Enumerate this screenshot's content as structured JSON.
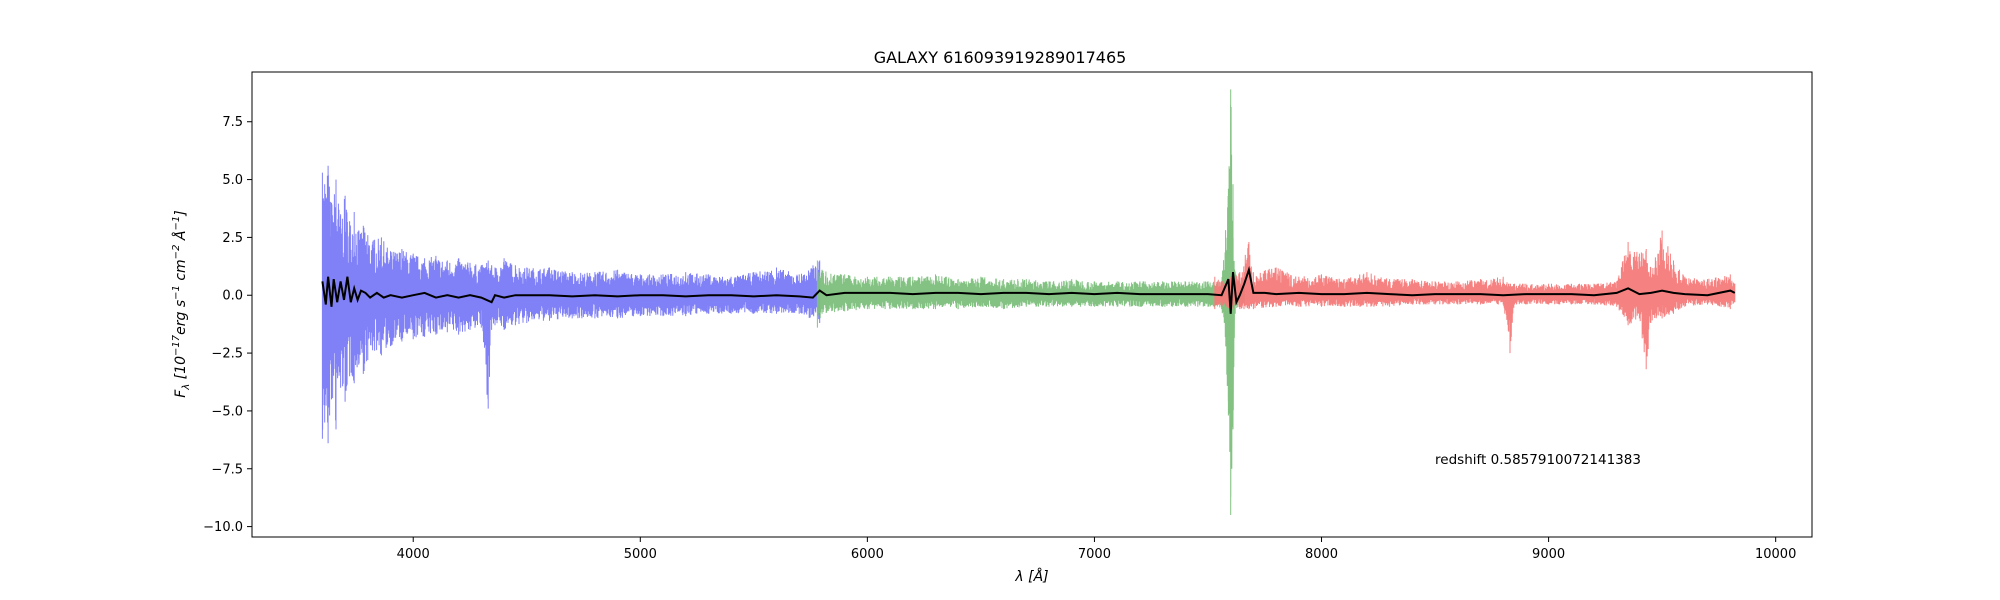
{
  "chart_data": {
    "type": "line",
    "title": "GALAXY 616093919289017465",
    "xlabel": "λ [Å]",
    "ylabel_parts": {
      "symbol": "F",
      "subscript": "λ",
      "open": " [10",
      "exp1": "−17",
      "unit1": "erg s",
      "exp2": "−1",
      "unit2": " cm",
      "exp3": "−2",
      "unit3": " Å",
      "exp4": "−1",
      "close": "]"
    },
    "xlim": [
      3290,
      10160
    ],
    "ylim": [
      -10.45,
      9.65
    ],
    "xticks": [
      4000,
      5000,
      6000,
      7000,
      8000,
      9000,
      10000
    ],
    "xtick_labels": [
      "4000",
      "5000",
      "6000",
      "7000",
      "8000",
      "9000",
      "10000"
    ],
    "yticks": [
      7.5,
      5.0,
      2.5,
      0.0,
      -2.5,
      -5.0,
      -7.5,
      -10.0
    ],
    "ytick_labels": [
      "7.5",
      "5.0",
      "2.5",
      "0.0",
      "−2.5",
      "−5.0",
      "−7.5",
      "−10.0"
    ],
    "annotation": {
      "text": "redshift 0.5857910072141383",
      "x": 8500,
      "y": -7.3
    },
    "series": [
      {
        "color": "#7a7af7",
        "x": [
          3600,
          3610,
          3625,
          3640,
          3660,
          3680,
          3700,
          3720,
          3740,
          3760,
          3780,
          3800,
          3830,
          3860,
          3900,
          3950,
          4000,
          4050,
          4100,
          4150,
          4200,
          4250,
          4300,
          4330,
          4345,
          4360,
          4400,
          4450,
          4500,
          4600,
          4700,
          4800,
          4900,
          5000,
          5100,
          5200,
          5300,
          5400,
          5500,
          5600,
          5700,
          5790
        ],
        "upper": [
          5.3,
          4.8,
          5.6,
          4.0,
          5.0,
          3.5,
          4.3,
          3.2,
          3.6,
          2.8,
          3.0,
          2.6,
          2.4,
          2.5,
          1.9,
          2.0,
          1.8,
          1.6,
          1.7,
          1.5,
          1.6,
          1.4,
          1.3,
          1.5,
          1.3,
          1.2,
          1.6,
          1.3,
          1.2,
          1.2,
          1.0,
          1.0,
          1.1,
          0.9,
          0.9,
          1.0,
          0.9,
          0.8,
          1.0,
          1.2,
          0.9,
          1.5
        ],
        "lower": [
          -6.2,
          -5.5,
          -6.4,
          -4.5,
          -5.8,
          -4.0,
          -4.6,
          -3.5,
          -3.8,
          -3.0,
          -3.4,
          -2.8,
          -2.4,
          -2.6,
          -2.2,
          -2.0,
          -1.9,
          -1.8,
          -1.7,
          -1.6,
          -1.7,
          -1.5,
          -1.4,
          -4.9,
          -1.5,
          -1.3,
          -1.5,
          -1.3,
          -1.2,
          -1.1,
          -1.0,
          -1.0,
          -1.0,
          -0.9,
          -0.9,
          -0.9,
          -0.8,
          -0.8,
          -0.8,
          -0.8,
          -0.8,
          -1.2
        ]
      },
      {
        "color": "#7cbf7c",
        "x": [
          5780,
          5800,
          5900,
          6000,
          6100,
          6200,
          6300,
          6400,
          6500,
          6600,
          6700,
          6800,
          6900,
          7000,
          7100,
          7200,
          7300,
          7400,
          7500,
          7560,
          7590,
          7600,
          7610,
          7620,
          7640,
          7660
        ],
        "upper": [
          1.5,
          1.1,
          0.9,
          0.8,
          0.8,
          0.8,
          0.9,
          0.7,
          0.8,
          0.7,
          0.7,
          0.6,
          0.7,
          0.6,
          0.6,
          0.6,
          0.6,
          0.6,
          0.6,
          0.6,
          4.6,
          8.9,
          4.8,
          1.0,
          0.6,
          0.5
        ],
        "lower": [
          -1.4,
          -0.8,
          -0.7,
          -0.6,
          -0.6,
          -0.6,
          -0.6,
          -0.6,
          -0.5,
          -0.6,
          -0.5,
          -0.5,
          -0.5,
          -0.5,
          -0.5,
          -0.5,
          -0.5,
          -0.5,
          -0.5,
          -0.6,
          -5.2,
          -9.5,
          -5.8,
          -0.8,
          -0.5,
          -0.4
        ]
      },
      {
        "color": "#f47a7a",
        "x": [
          7530,
          7560,
          7600,
          7640,
          7680,
          7700,
          7800,
          7900,
          8000,
          8100,
          8200,
          8300,
          8400,
          8500,
          8600,
          8700,
          8800,
          8830,
          8850,
          8900,
          9000,
          9100,
          9200,
          9300,
          9350,
          9400,
          9430,
          9450,
          9500,
          9550,
          9600,
          9700,
          9800,
          9820
        ],
        "upper": [
          0.8,
          0.6,
          0.8,
          1.0,
          2.3,
          1.0,
          1.2,
          0.8,
          0.9,
          0.7,
          1.0,
          0.7,
          0.7,
          0.6,
          0.6,
          0.7,
          0.8,
          0.5,
          0.5,
          0.5,
          0.5,
          0.5,
          0.5,
          0.6,
          2.3,
          1.8,
          2.0,
          1.2,
          2.8,
          1.5,
          0.8,
          0.7,
          0.9,
          0.5
        ],
        "lower": [
          -0.6,
          -0.5,
          -0.6,
          -0.6,
          -0.6,
          -0.6,
          -0.5,
          -0.5,
          -0.5,
          -0.5,
          -0.5,
          -0.5,
          -0.4,
          -0.4,
          -0.4,
          -0.4,
          -0.4,
          -2.5,
          -0.4,
          -0.4,
          -0.4,
          -0.4,
          -0.4,
          -0.5,
          -1.3,
          -1.0,
          -3.2,
          -1.2,
          -1.0,
          -0.8,
          -0.5,
          -0.4,
          -0.6,
          -0.3
        ]
      },
      {
        "color": "#000000",
        "x": [
          3600,
          3615,
          3625,
          3640,
          3650,
          3665,
          3680,
          3695,
          3710,
          3725,
          3740,
          3755,
          3770,
          3790,
          3810,
          3840,
          3870,
          3900,
          3950,
          4000,
          4050,
          4100,
          4150,
          4200,
          4250,
          4300,
          4345,
          4360,
          4400,
          4450,
          4500,
          4600,
          4700,
          4800,
          4900,
          5000,
          5100,
          5200,
          5300,
          5400,
          5500,
          5600,
          5700,
          5760,
          5790,
          5820,
          5900,
          6000,
          6100,
          6200,
          6300,
          6400,
          6500,
          6600,
          6700,
          6800,
          6900,
          7000,
          7100,
          7200,
          7300,
          7400,
          7500,
          7560,
          7590,
          7600,
          7610,
          7625,
          7640,
          7660,
          7680,
          7700,
          7750,
          7800,
          7900,
          8000,
          8100,
          8200,
          8300,
          8400,
          8500,
          8600,
          8700,
          8800,
          8900,
          9000,
          9100,
          9200,
          9300,
          9350,
          9400,
          9450,
          9500,
          9550,
          9600,
          9700,
          9800,
          9820
        ],
        "y": [
          0.6,
          -0.4,
          0.8,
          -0.5,
          0.7,
          -0.3,
          0.6,
          -0.2,
          0.8,
          -0.3,
          0.3,
          -0.2,
          0.2,
          0.1,
          -0.1,
          0.1,
          -0.1,
          0.0,
          -0.1,
          0.0,
          0.1,
          -0.1,
          0.0,
          -0.1,
          0.0,
          -0.1,
          -0.3,
          0.0,
          -0.1,
          0.0,
          0.0,
          0.0,
          -0.05,
          0.0,
          -0.05,
          0.0,
          0.0,
          -0.05,
          0.0,
          0.0,
          -0.05,
          0.0,
          -0.05,
          -0.1,
          0.2,
          0.0,
          0.1,
          0.1,
          0.1,
          0.05,
          0.1,
          0.1,
          0.05,
          0.1,
          0.1,
          0.05,
          0.1,
          0.05,
          0.1,
          0.05,
          0.05,
          0.05,
          0.05,
          0.0,
          0.7,
          -0.8,
          1.0,
          -0.3,
          0.0,
          0.5,
          1.1,
          0.1,
          0.1,
          0.05,
          0.1,
          0.05,
          0.05,
          0.1,
          0.05,
          0.0,
          0.05,
          0.05,
          0.05,
          0.0,
          0.05,
          0.05,
          0.05,
          0.0,
          0.1,
          0.3,
          0.05,
          0.1,
          0.2,
          0.1,
          0.05,
          0.0,
          0.2,
          0.1
        ]
      }
    ]
  }
}
